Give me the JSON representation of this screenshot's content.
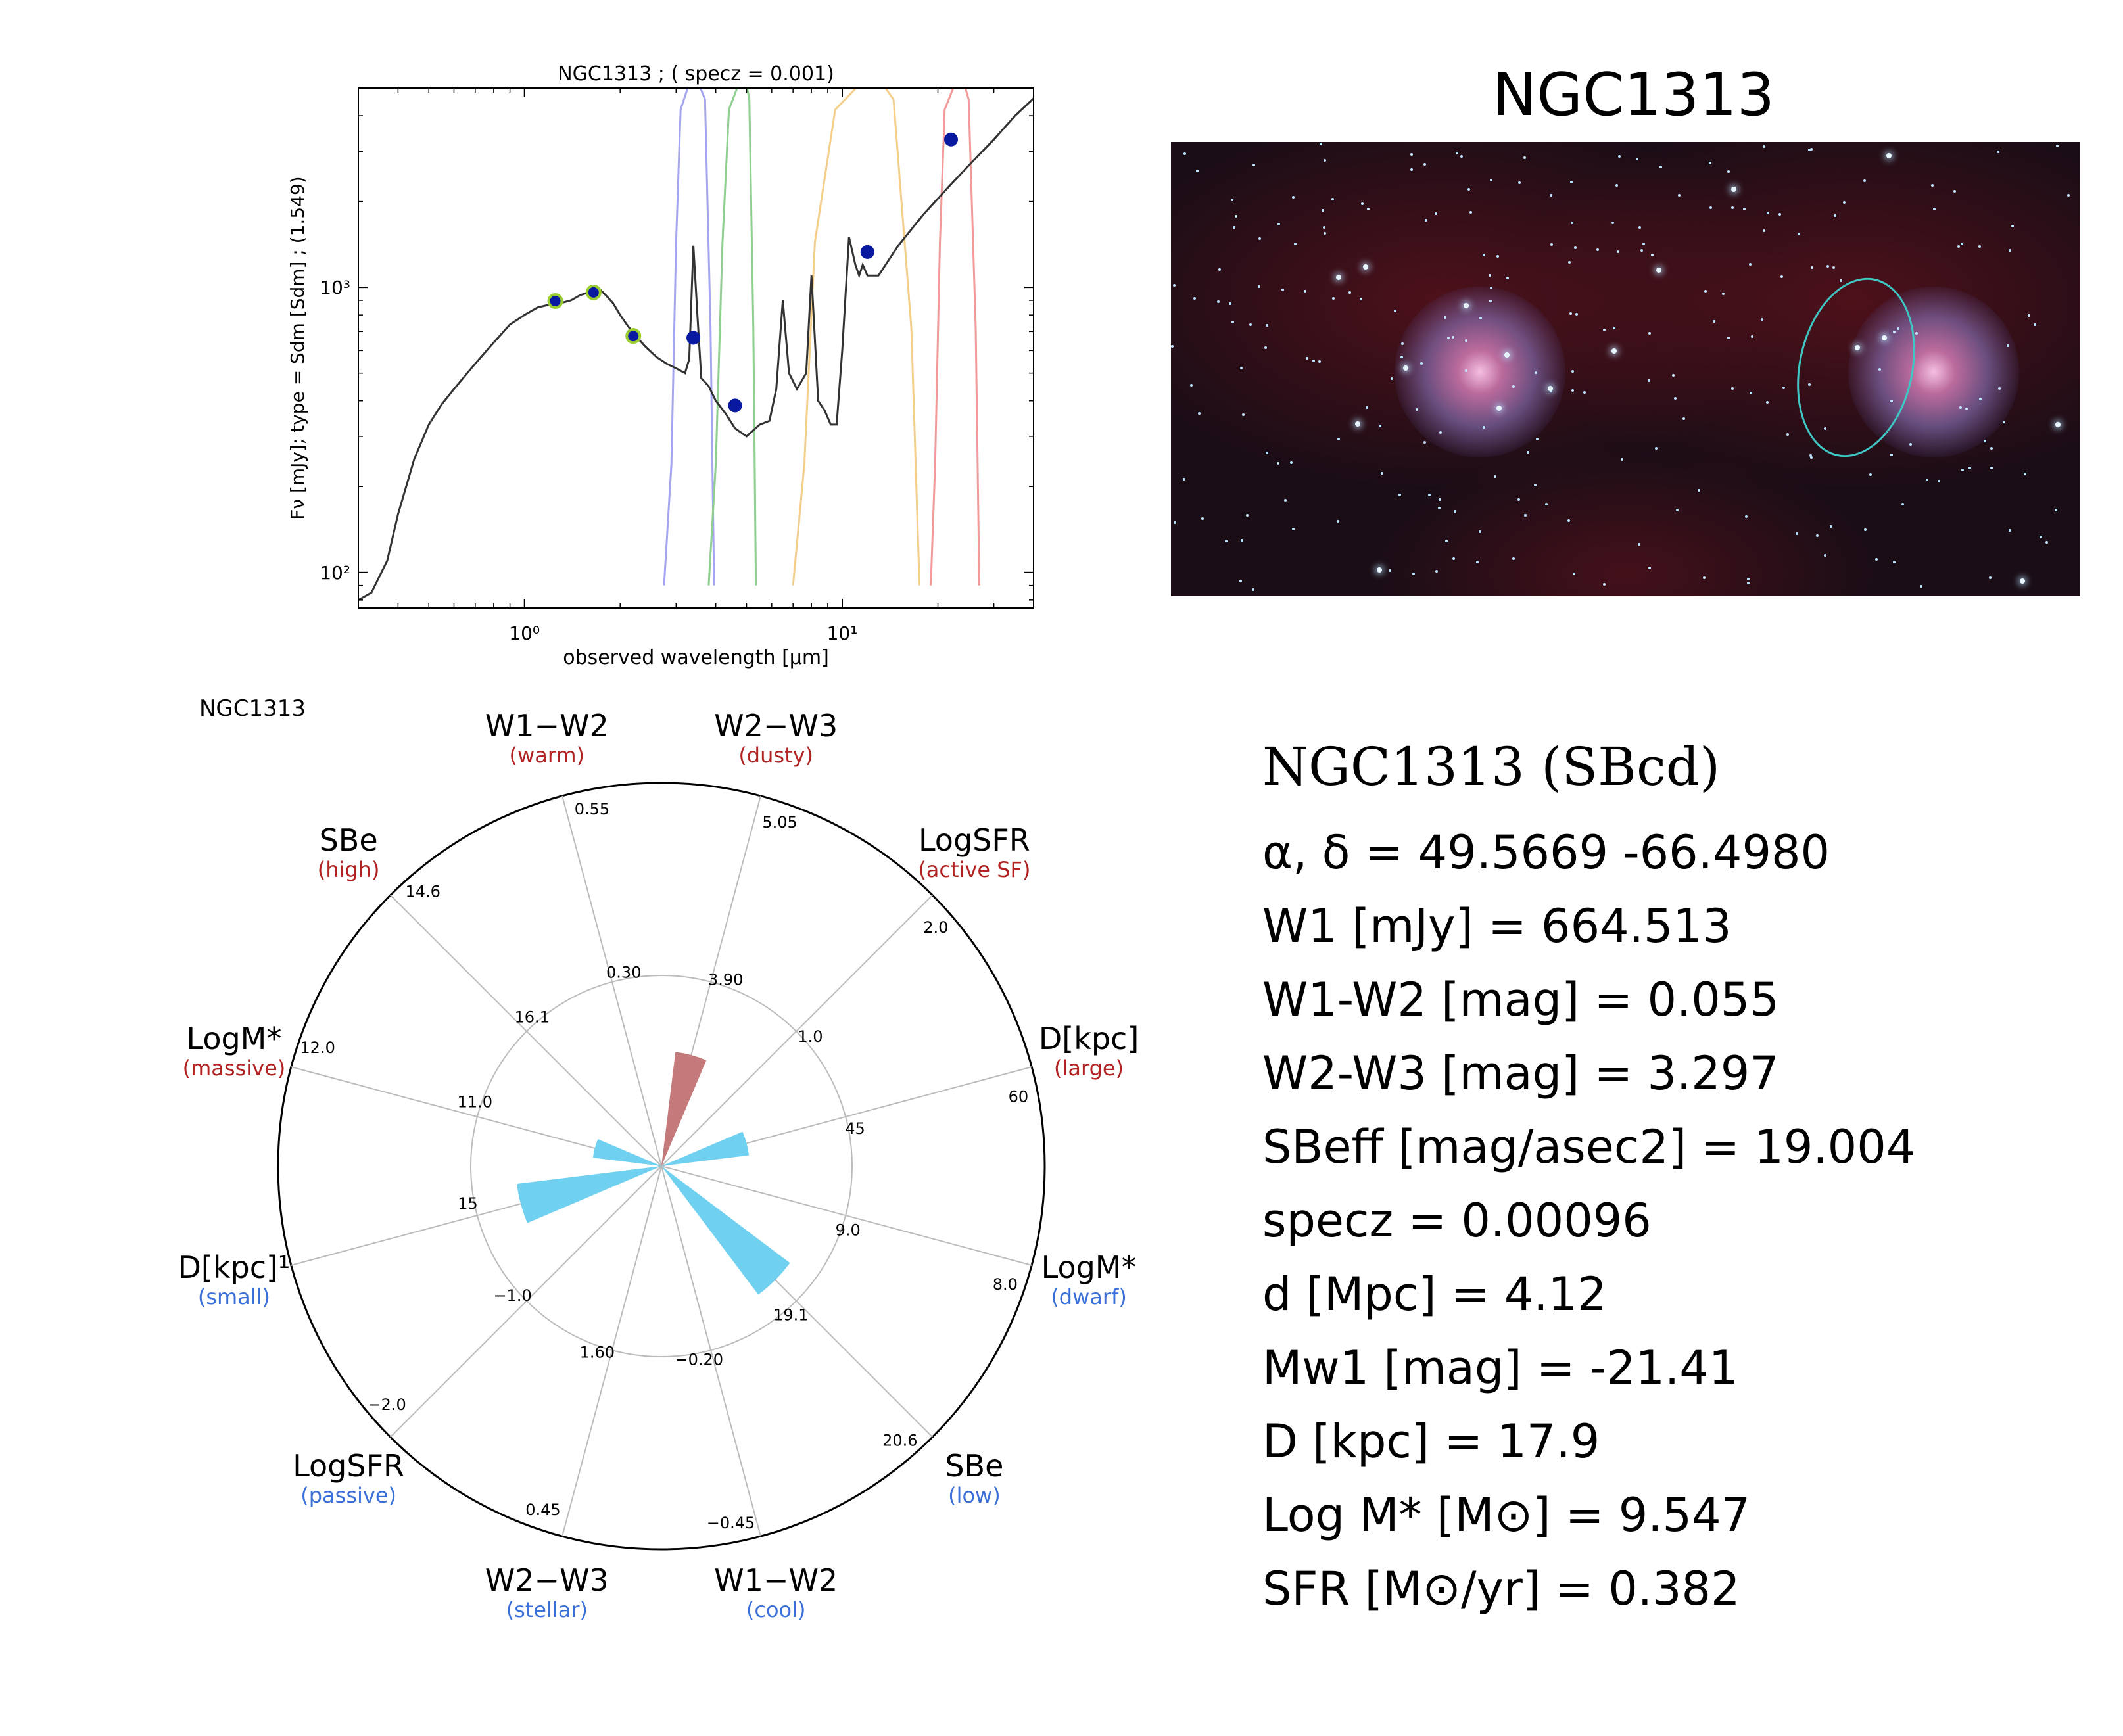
{
  "sed": {
    "title": "NGC1313 ; ( specz = 0.001)",
    "ylabel": "Fν [mJy];  type = Sdm [Sdm] ; (1.549)",
    "xlabel": "observed wavelength [μm]",
    "x_ticks": [
      "10⁰",
      "10¹"
    ],
    "y_ticks": [
      "10²",
      "10³"
    ]
  },
  "image_panel": {
    "title": "NGC1313"
  },
  "radar": {
    "title": "NGC1313",
    "outer_labels": [
      {
        "name": "W1−W2",
        "sub": "(warm)",
        "color": "#b22222"
      },
      {
        "name": "W2−W3",
        "sub": "(dusty)",
        "color": "#b22222"
      },
      {
        "name": "LogSFR",
        "sub": "(active SF)",
        "color": "#b22222"
      },
      {
        "name": "D[kpc]",
        "sub": "(large)",
        "color": "#b22222"
      },
      {
        "name": "LogM*",
        "sub": "(dwarf)",
        "color": "#3a6fd8"
      },
      {
        "name": "SBe",
        "sub": "(low)",
        "color": "#3a6fd8"
      },
      {
        "name": "W1−W2",
        "sub": "(cool)",
        "color": "#3a6fd8"
      },
      {
        "name": "W2−W3",
        "sub": "(stellar)",
        "color": "#3a6fd8"
      },
      {
        "name": "LogSFR",
        "sub": "(passive)",
        "color": "#3a6fd8"
      },
      {
        "name": "D[kpc]¹",
        "sub": "(small)",
        "color": "#3a6fd8"
      },
      {
        "name": "LogM*",
        "sub": "(massive)",
        "color": "#b22222"
      },
      {
        "name": "SBe",
        "sub": "(high)",
        "color": "#b22222"
      }
    ],
    "outer_ticks": [
      "0.55",
      "5.05",
      "2.0",
      "60",
      "8.0",
      "20.6",
      "−0.45",
      "0.45",
      "−2.0",
      "",
      "12.0",
      "14.6"
    ],
    "inner_ticks": [
      "0.30",
      "3.90",
      "1.0",
      "45",
      "9.0",
      "19.1",
      "−0.20",
      "1.60",
      "−1.0",
      "15",
      "11.0",
      "16.1"
    ]
  },
  "info": {
    "title": "NGC1313  (SBcd)",
    "coords": "α, δ = 49.5669 -66.4980",
    "w1": "W1 [mJy] = 664.513",
    "w1w2": "W1-W2 [mag] = 0.055",
    "w2w3": "W2-W3 [mag] = 3.297",
    "sb_eff": "SBeff [mag/asec2] = 19.004",
    "specz": "specz = 0.00096",
    "d": "d [Mpc] = 4.12",
    "mw1": "Mw1 [mag] = -21.41",
    "D": "D [kpc] = 17.9",
    "logm": "Log M* [M⊙] = 9.547",
    "sfr": "SFR [M⊙/yr] = 0.382"
  },
  "chart_data": [
    {
      "type": "line",
      "title": "NGC1313 ; ( specz = 0.001)",
      "xlabel": "observed wavelength [μm]",
      "ylabel": "Fν [mJy];  type = Sdm [Sdm] ; (1.549)",
      "xscale": "log",
      "yscale": "log",
      "xlim": [
        0.3,
        40
      ],
      "ylim": [
        75,
        5000
      ],
      "series": [
        {
          "kind": "line",
          "color": "#333333",
          "x": [
            0.3,
            0.33,
            0.37,
            0.4,
            0.45,
            0.5,
            0.55,
            0.6,
            0.7,
            0.8,
            0.9,
            1.0,
            1.1,
            1.2,
            1.3,
            1.4,
            1.5,
            1.6,
            1.7,
            1.8,
            1.9,
            2.0,
            2.1,
            2.2,
            2.4,
            2.6,
            2.8,
            3.0,
            3.2,
            3.3,
            3.4,
            3.5,
            3.6,
            3.8,
            4.0,
            4.3,
            4.6,
            5.0,
            5.5,
            5.9,
            6.2,
            6.5,
            6.8,
            7.2,
            7.7,
            8.0,
            8.4,
            8.8,
            9.2,
            9.6,
            10.0,
            10.5,
            11.0,
            11.3,
            11.6,
            12.0,
            12.5,
            13.0,
            15,
            18,
            22,
            26,
            30,
            35,
            40
          ],
          "y": [
            80,
            85,
            110,
            160,
            250,
            330,
            390,
            440,
            540,
            640,
            740,
            800,
            850,
            870,
            880,
            900,
            940,
            960,
            1000,
            940,
            880,
            800,
            740,
            690,
            620,
            570,
            540,
            520,
            500,
            560,
            1400,
            800,
            480,
            450,
            400,
            360,
            320,
            300,
            330,
            340,
            440,
            900,
            500,
            440,
            500,
            1100,
            400,
            370,
            330,
            330,
            600,
            1500,
            1200,
            1100,
            1200,
            1100,
            1100,
            1100,
            1400,
            1800,
            2300,
            2800,
            3300,
            4000,
            4600
          ]
        },
        {
          "kind": "scatter",
          "color": "#0a1aa0",
          "edge": "#9acd32",
          "x": [
            1.25,
            1.65,
            2.2
          ],
          "y": [
            895,
            960,
            675
          ]
        },
        {
          "kind": "scatter",
          "color": "#0a1aa0",
          "x": [
            3.4,
            4.6,
            12,
            22
          ],
          "y": [
            665,
            385,
            1330,
            3300
          ]
        }
      ]
    },
    {
      "type": "radar",
      "title": "NGC1313",
      "axes": [
        "W1−W2 (warm)",
        "W2−W3 (dusty)",
        "LogSFR (active SF)",
        "D[kpc] (large)",
        "LogM* (dwarf)",
        "SBe (low)",
        "W1−W2 (cool)",
        "W2−W3 (stellar)",
        "LogSFR (passive)",
        "D[kpc] (small)",
        "LogM* (massive)",
        "SBe (high)"
      ],
      "rlim": [
        0,
        1
      ],
      "series": [
        {
          "color": "#c47a7a",
          "values": [
            0,
            0.3,
            0,
            0,
            0,
            0,
            0,
            0,
            0,
            0,
            0,
            0
          ]
        },
        {
          "color": "#6fd0ef",
          "values": [
            0,
            0,
            0,
            0.23,
            0,
            0.42,
            0,
            0,
            0,
            0.38,
            0.18,
            0
          ]
        }
      ]
    }
  ]
}
